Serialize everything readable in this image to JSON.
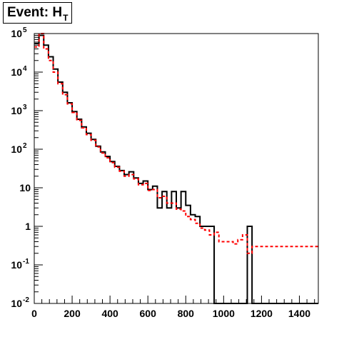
{
  "title": {
    "main": "Event: H",
    "sub": "T"
  },
  "chart_data": {
    "type": "histogram",
    "title": "Event: H_T",
    "xlabel": "",
    "ylabel": "",
    "xlim": [
      0,
      1500
    ],
    "ylim": [
      0.01,
      100000
    ],
    "y_scale": "log",
    "bin_width": 25,
    "x_ticks": [
      {
        "value": 0,
        "label": "0"
      },
      {
        "value": 200,
        "label": "200"
      },
      {
        "value": 400,
        "label": "400"
      },
      {
        "value": 600,
        "label": "600"
      },
      {
        "value": 800,
        "label": "800"
      },
      {
        "value": 1000,
        "label": "1000"
      },
      {
        "value": 1200,
        "label": "1200"
      },
      {
        "value": 1400,
        "label": "1400"
      }
    ],
    "y_ticks": [
      {
        "value": 0.01,
        "base": "10",
        "exp": "-2"
      },
      {
        "value": 0.1,
        "base": "10",
        "exp": "-1"
      },
      {
        "value": 1,
        "base": "1",
        "exp": ""
      },
      {
        "value": 10,
        "base": "10",
        "exp": ""
      },
      {
        "value": 100,
        "base": "10",
        "exp": "2"
      },
      {
        "value": 1000,
        "base": "10",
        "exp": "3"
      },
      {
        "value": 10000,
        "base": "10",
        "exp": "4"
      },
      {
        "value": 100000,
        "base": "10",
        "exp": "5"
      }
    ],
    "series": [
      {
        "color": "#000000",
        "style": "solid",
        "values": [
          55000,
          90000,
          50000,
          25000,
          12000,
          5500,
          3000,
          1600,
          950,
          600,
          380,
          260,
          180,
          120,
          85,
          65,
          48,
          36,
          28,
          22,
          26,
          18,
          13,
          15,
          9,
          11,
          3,
          8,
          3,
          8,
          3,
          8,
          3.5,
          2,
          1.8,
          1,
          1,
          1,
          0,
          0,
          0,
          0,
          0,
          0,
          0,
          1,
          0,
          0,
          0,
          0,
          0,
          0,
          0,
          0,
          0,
          0,
          0,
          0,
          0,
          0
        ]
      },
      {
        "color": "#ff0000",
        "style": "dashed",
        "values": [
          45000,
          100000,
          40000,
          20000,
          10000,
          5000,
          2600,
          1500,
          900,
          560,
          360,
          240,
          170,
          115,
          80,
          60,
          45,
          34,
          27,
          20,
          22,
          17,
          12,
          13,
          8.5,
          9,
          5.5,
          6,
          4,
          4,
          2.8,
          2.5,
          1.8,
          1.5,
          1.2,
          0.9,
          0.8,
          0.6,
          0.7,
          0.4,
          0.4,
          0.4,
          0.35,
          0.45,
          0.6,
          0.2,
          0.3,
          0.3,
          0.3,
          0.3,
          0.3,
          0.3,
          0.3,
          0.3,
          0.3,
          0.3,
          0.3,
          0.3,
          0.3,
          0.3
        ]
      }
    ]
  }
}
